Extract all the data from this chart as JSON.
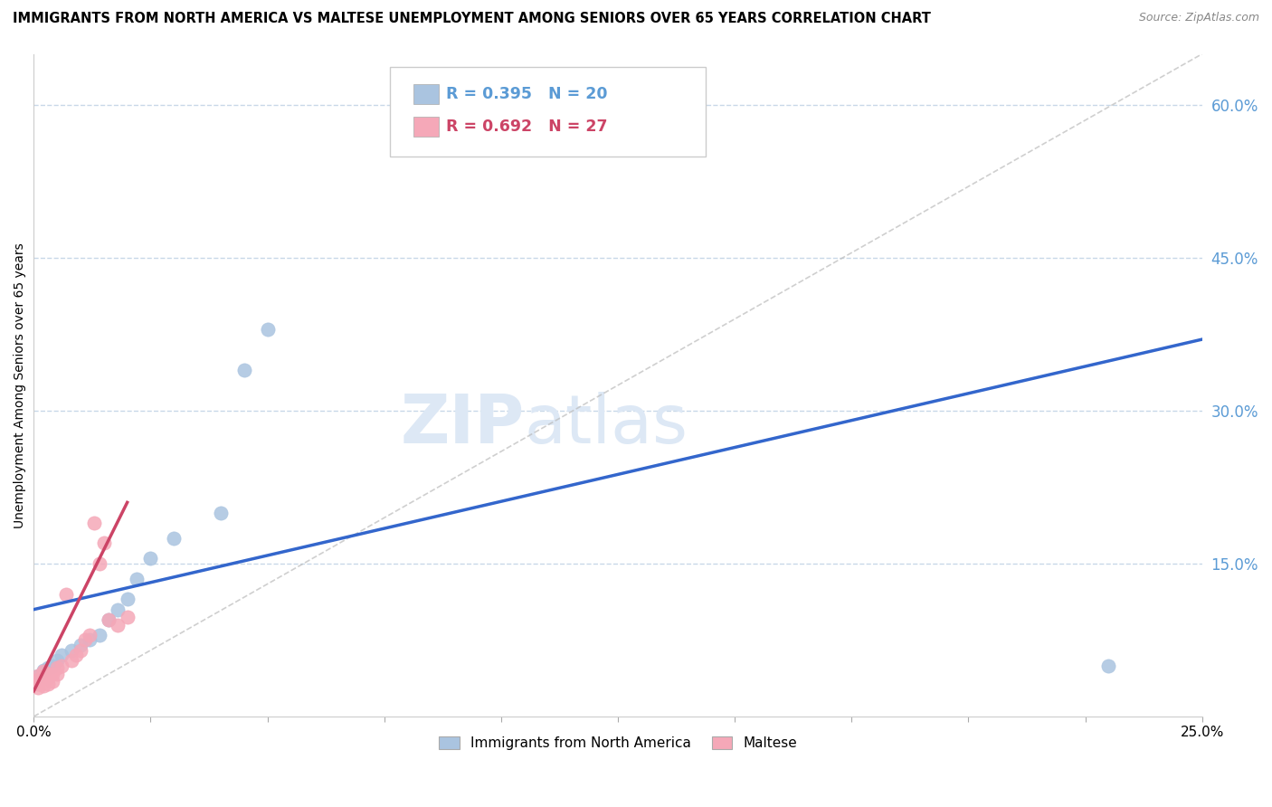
{
  "title": "IMMIGRANTS FROM NORTH AMERICA VS MALTESE UNEMPLOYMENT AMONG SENIORS OVER 65 YEARS CORRELATION CHART",
  "source": "Source: ZipAtlas.com",
  "ylabel": "Unemployment Among Seniors over 65 years",
  "xlim": [
    0.0,
    0.25
  ],
  "ylim": [
    0.0,
    0.65
  ],
  "xtick_positions": [
    0.0,
    0.025,
    0.05,
    0.075,
    0.1,
    0.125,
    0.15,
    0.175,
    0.2,
    0.225,
    0.25
  ],
  "xtick_labels": [
    "0.0%",
    "",
    "",
    "",
    "",
    "",
    "",
    "",
    "",
    "",
    "25.0%"
  ],
  "yticks_right": [
    0.15,
    0.3,
    0.45,
    0.6
  ],
  "ytick_labels_right": [
    "15.0%",
    "30.0%",
    "45.0%",
    "60.0%"
  ],
  "blue_R": 0.395,
  "blue_N": 20,
  "pink_R": 0.692,
  "pink_N": 27,
  "blue_color": "#aac4e0",
  "pink_color": "#f5a8b8",
  "blue_line_color": "#3366cc",
  "pink_line_color": "#cc4466",
  "ref_line_color": "#bbbbbb",
  "watermark_color": "#dde8f5",
  "blue_x": [
    0.001,
    0.002,
    0.003,
    0.004,
    0.005,
    0.006,
    0.008,
    0.01,
    0.012,
    0.014,
    0.016,
    0.018,
    0.02,
    0.022,
    0.025,
    0.03,
    0.04,
    0.045,
    0.05,
    0.23
  ],
  "blue_y": [
    0.04,
    0.045,
    0.048,
    0.05,
    0.055,
    0.06,
    0.065,
    0.07,
    0.075,
    0.08,
    0.095,
    0.105,
    0.115,
    0.135,
    0.155,
    0.175,
    0.2,
    0.34,
    0.38,
    0.05
  ],
  "pink_x": [
    0.001,
    0.001,
    0.001,
    0.001,
    0.002,
    0.002,
    0.002,
    0.003,
    0.003,
    0.003,
    0.004,
    0.004,
    0.005,
    0.005,
    0.006,
    0.007,
    0.008,
    0.009,
    0.01,
    0.011,
    0.012,
    0.013,
    0.014,
    0.015,
    0.016,
    0.018,
    0.02
  ],
  "pink_y": [
    0.028,
    0.032,
    0.036,
    0.04,
    0.03,
    0.038,
    0.044,
    0.032,
    0.038,
    0.042,
    0.035,
    0.042,
    0.042,
    0.048,
    0.05,
    0.12,
    0.055,
    0.06,
    0.065,
    0.075,
    0.08,
    0.19,
    0.15,
    0.17,
    0.095,
    0.09,
    0.098
  ],
  "blue_trend_x": [
    0.0,
    0.25
  ],
  "blue_trend_y": [
    0.105,
    0.37
  ],
  "pink_trend_x": [
    0.0,
    0.02
  ],
  "pink_trend_y": [
    0.025,
    0.21
  ]
}
